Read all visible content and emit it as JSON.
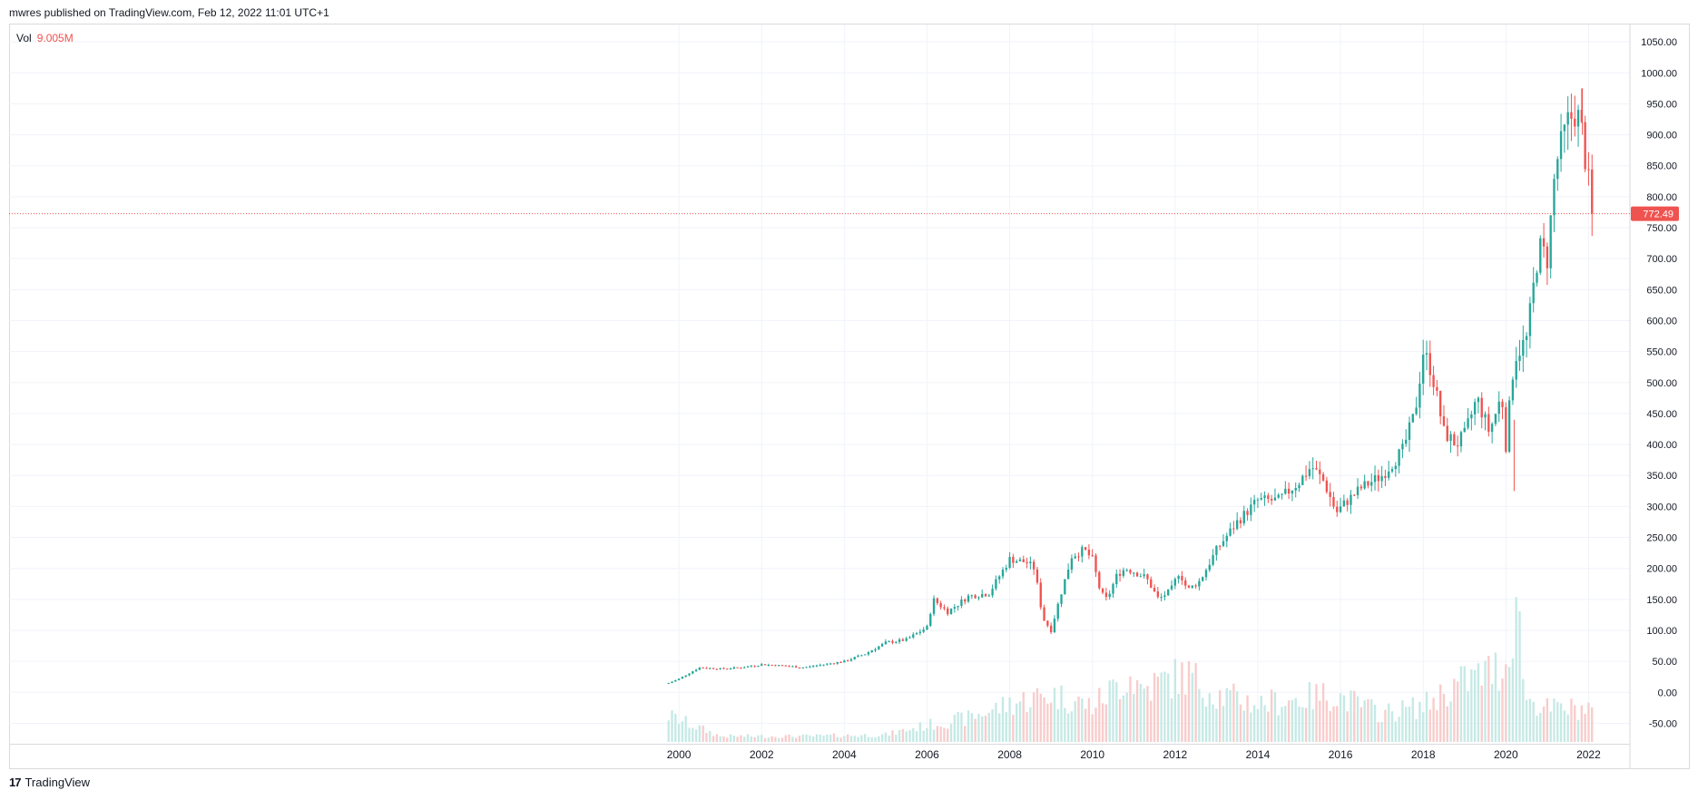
{
  "header": {
    "published_line": "mwres published on TradingView.com, Feb 12, 2022 11:01 UTC+1"
  },
  "volume_legend": {
    "label": "Vol",
    "value": "9.005M"
  },
  "footer": {
    "brand_logo": "17",
    "brand_name": "TradingView"
  },
  "colors": {
    "up": "#26a69a",
    "down": "#ef5350",
    "volume_up": "#c6e9e5",
    "volume_down": "#f8cccc",
    "grid": "#f0f3fa",
    "axis_text": "#131722",
    "price_line": "#ef5350"
  },
  "chart_data": {
    "type": "candlestick",
    "timeframe": "monthly",
    "last_price": 772.49,
    "last_price_label": "772.49",
    "price_axis": {
      "ticks": [
        1050,
        1000,
        950,
        900,
        850,
        800,
        750,
        700,
        650,
        600,
        550,
        500,
        450,
        400,
        350,
        300,
        250,
        200,
        150,
        100,
        50,
        0,
        -50
      ],
      "tick_labels": [
        "1050.00",
        "1000.00",
        "950.00",
        "900.00",
        "850.00",
        "800.00",
        "750.00",
        "700.00",
        "650.00",
        "600.00",
        "550.00",
        "500.00",
        "450.00",
        "400.00",
        "350.00",
        "300.00",
        "250.00",
        "200.00",
        "150.00",
        "100.00",
        "50.00",
        "0.00",
        "-50.00"
      ],
      "range": [
        -83,
        1078
      ]
    },
    "time_axis": {
      "labels": [
        "2000",
        "2002",
        "2004",
        "2006",
        "2008",
        "2010",
        "2012",
        "2014",
        "2016",
        "2018",
        "2020",
        "2022"
      ],
      "values": [
        2000,
        2002,
        2004,
        2006,
        2008,
        2010,
        2012,
        2014,
        2016,
        2018,
        2020,
        2022
      ],
      "range": [
        1983.8,
        2023
      ]
    },
    "price_series": {
      "t": [
        1999.75,
        2000.0,
        2000.5,
        2001.0,
        2001.5,
        2002.0,
        2002.5,
        2003.0,
        2003.5,
        2004.0,
        2004.5,
        2005.0,
        2005.5,
        2006.0,
        2006.15,
        2006.5,
        2007.0,
        2007.5,
        2008.0,
        2008.4,
        2008.6,
        2008.8,
        2009.0,
        2009.2,
        2009.5,
        2009.8,
        2010.0,
        2010.2,
        2010.35,
        2010.6,
        2010.8,
        2011.0,
        2011.3,
        2011.6,
        2011.9,
        2012.1,
        2012.3,
        2012.6,
        2013.0,
        2013.5,
        2014.0,
        2014.5,
        2015.0,
        2015.3,
        2015.6,
        2015.9,
        2016.1,
        2016.5,
        2017.0,
        2017.5,
        2017.8,
        2018.0,
        2018.2,
        2018.5,
        2018.8,
        2019.0,
        2019.3,
        2019.6,
        2019.9,
        2020.0,
        2020.2,
        2020.5,
        2020.8,
        2021.0,
        2021.2,
        2021.5,
        2021.7,
        2021.85,
        2022.0,
        2022.1
      ],
      "close": [
        15,
        22,
        40,
        38,
        40,
        45,
        43,
        40,
        45,
        50,
        62,
        80,
        85,
        105,
        150,
        130,
        155,
        160,
        215,
        210,
        200,
        120,
        100,
        150,
        220,
        230,
        215,
        160,
        150,
        190,
        200,
        195,
        185,
        150,
        165,
        195,
        165,
        180,
        230,
        275,
        310,
        310,
        340,
        365,
        340,
        290,
        305,
        330,
        350,
        390,
        450,
        550,
        520,
        420,
        400,
        415,
        475,
        420,
        480,
        400,
        540,
        570,
        720,
        700,
        850,
        920,
        940,
        900,
        820,
        772
      ]
    },
    "notable_extremes": {
      "high": 975,
      "low_2020": 325
    },
    "volume_series": {
      "t": [
        1999.75,
        2001,
        2003,
        2005,
        2006,
        2007,
        2008,
        2008.5,
        2009,
        2010,
        2010.9,
        2011.2,
        2011.8,
        2012.3,
        2013,
        2014,
        2015,
        2015.8,
        2017,
        2018,
        2018.8,
        2020,
        2020.25,
        2020.5,
        2021,
        2022.1
      ],
      "rel": [
        0.55,
        0.12,
        0.12,
        0.15,
        0.35,
        0.5,
        0.8,
        0.9,
        1.0,
        0.75,
        1.4,
        1.1,
        1.3,
        1.4,
        1.0,
        0.8,
        0.9,
        1.0,
        0.6,
        0.75,
        1.2,
        1.6,
        3.0,
        0.9,
        0.7,
        0.7
      ]
    }
  }
}
